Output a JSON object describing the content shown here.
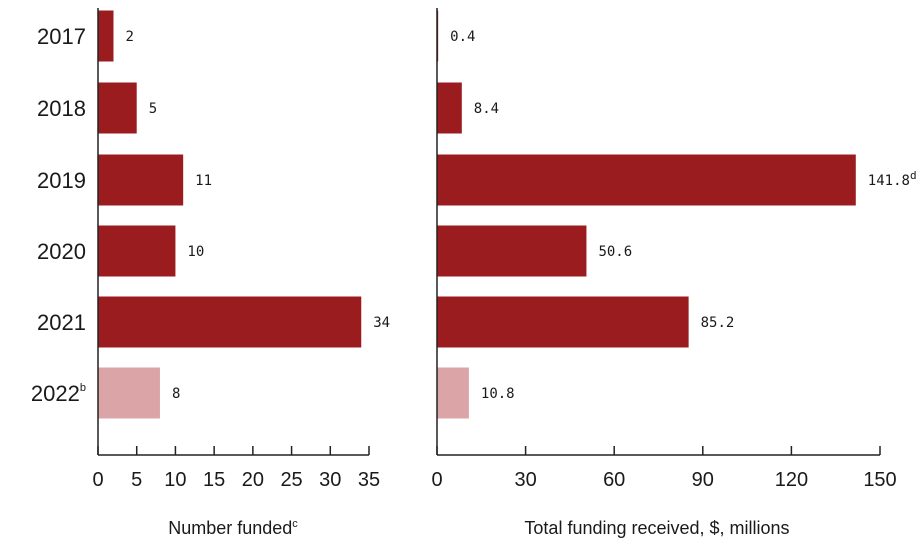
{
  "chart_data": [
    {
      "type": "bar",
      "orientation": "horizontal",
      "categories": [
        {
          "label": "2017",
          "sup": ""
        },
        {
          "label": "2018",
          "sup": ""
        },
        {
          "label": "2019",
          "sup": ""
        },
        {
          "label": "2020",
          "sup": ""
        },
        {
          "label": "2021",
          "sup": ""
        },
        {
          "label": "2022",
          "sup": "b"
        }
      ],
      "values": [
        2,
        5,
        11,
        10,
        34,
        8
      ],
      "value_labels": [
        {
          "text": "2",
          "sup": ""
        },
        {
          "text": "5",
          "sup": ""
        },
        {
          "text": "11",
          "sup": ""
        },
        {
          "text": "10",
          "sup": ""
        },
        {
          "text": "34",
          "sup": ""
        },
        {
          "text": "8",
          "sup": ""
        }
      ],
      "xlabel": {
        "text": "Number funded",
        "sup": "c"
      },
      "xlim": [
        0,
        35
      ],
      "xticks": [
        0,
        5,
        10,
        15,
        20,
        25,
        30,
        35
      ],
      "grid": false
    },
    {
      "type": "bar",
      "orientation": "horizontal",
      "categories": [
        {
          "label": "2017",
          "sup": ""
        },
        {
          "label": "2018",
          "sup": ""
        },
        {
          "label": "2019",
          "sup": ""
        },
        {
          "label": "2020",
          "sup": ""
        },
        {
          "label": "2021",
          "sup": ""
        },
        {
          "label": "2022",
          "sup": "b"
        }
      ],
      "values": [
        0.4,
        8.4,
        141.8,
        50.6,
        85.2,
        10.8
      ],
      "value_labels": [
        {
          "text": "0.4",
          "sup": ""
        },
        {
          "text": "8.4",
          "sup": ""
        },
        {
          "text": "141.8",
          "sup": "d"
        },
        {
          "text": "50.6",
          "sup": ""
        },
        {
          "text": "85.2",
          "sup": ""
        },
        {
          "text": "10.8",
          "sup": ""
        }
      ],
      "xlabel": {
        "text": "Total funding received, $, millions",
        "sup": ""
      },
      "xlim": [
        0,
        150
      ],
      "xticks": [
        0,
        30,
        60,
        90,
        120,
        150
      ],
      "grid": false
    }
  ],
  "colors": {
    "bar": "#9b1c1f",
    "bar_partial_year": "#dba4a7",
    "axis": "#222222"
  }
}
